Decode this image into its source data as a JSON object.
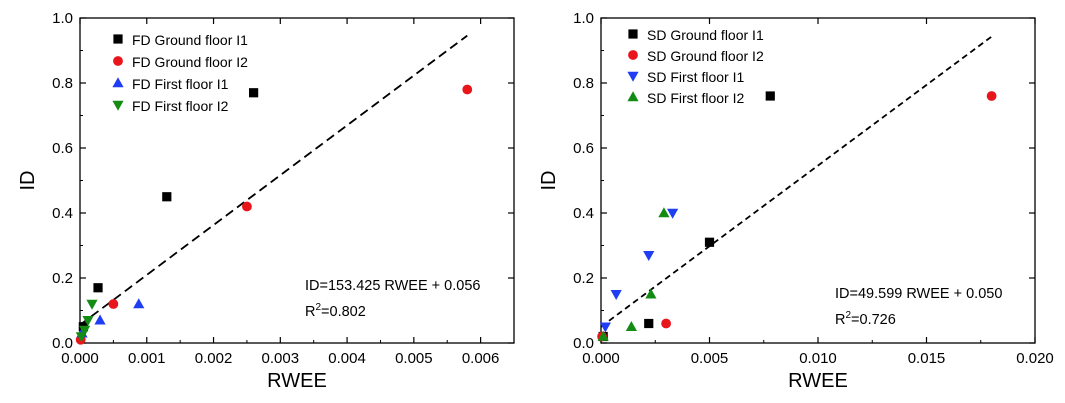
{
  "chart_data": [
    {
      "type": "scatter",
      "xlabel": "RWEE",
      "ylabel": "ID",
      "xlim": [
        0,
        0.0065
      ],
      "ylim": [
        0,
        1.0
      ],
      "xticks": [
        "0.000",
        "0.001",
        "0.002",
        "0.003",
        "0.004",
        "0.005",
        "0.006"
      ],
      "xtick_values": [
        0,
        0.001,
        0.002,
        0.003,
        0.004,
        0.005,
        0.006
      ],
      "yticks": [
        "0.0",
        "0.2",
        "0.4",
        "0.6",
        "0.8",
        "1.0"
      ],
      "ytick_values": [
        0,
        0.2,
        0.4,
        0.6,
        0.8,
        1.0
      ],
      "legend_position": "top-left",
      "series": [
        {
          "name": "FD Ground floor I1",
          "marker": "square",
          "color": "#000000",
          "points": [
            [
              5e-05,
              0.05
            ],
            [
              0.00027,
              0.17
            ],
            [
              0.0013,
              0.45
            ],
            [
              0.0026,
              0.77
            ]
          ]
        },
        {
          "name": "FD Ground floor I2",
          "marker": "circle",
          "color": "#e8161b",
          "points": [
            [
              1e-05,
              0.01
            ],
            [
              0.0005,
              0.12
            ],
            [
              0.0025,
              0.42
            ],
            [
              0.0058,
              0.78
            ]
          ]
        },
        {
          "name": "FD First floor I1",
          "marker": "triangle-up",
          "color": "#1f3df2",
          "points": [
            [
              3e-05,
              0.03
            ],
            [
              0.0003,
              0.07
            ],
            [
              0.00088,
              0.12
            ]
          ]
        },
        {
          "name": "FD First floor I2",
          "marker": "triangle-down",
          "color": "#148c14",
          "points": [
            [
              2e-05,
              0.02
            ],
            [
              7e-05,
              0.04
            ],
            [
              0.00012,
              0.07
            ],
            [
              0.00018,
              0.12
            ]
          ]
        }
      ],
      "fit": {
        "slope": 153.425,
        "intercept": 0.056,
        "x_range": [
          0,
          0.0058
        ]
      },
      "annotation": {
        "equation": "ID=153.425 RWEE + 0.056",
        "r2_base": "R",
        "r2_sup": "2",
        "r2_value": "=0.802"
      }
    },
    {
      "type": "scatter",
      "xlabel": "RWEE",
      "ylabel": "ID",
      "xlim": [
        0,
        0.02
      ],
      "ylim": [
        0,
        1.0
      ],
      "xticks": [
        "0.000",
        "0.005",
        "0.010",
        "0.015",
        "0.020"
      ],
      "xtick_values": [
        0,
        0.005,
        0.01,
        0.015,
        0.02
      ],
      "yticks": [
        "0.0",
        "0.2",
        "0.4",
        "0.6",
        "0.8",
        "1.0"
      ],
      "ytick_values": [
        0,
        0.2,
        0.4,
        0.6,
        0.8,
        1.0
      ],
      "legend_position": "top-left",
      "series": [
        {
          "name": "SD Ground floor I1",
          "marker": "square",
          "color": "#000000",
          "points": [
            [
              0.0001,
              0.02
            ],
            [
              0.0022,
              0.06
            ],
            [
              0.005,
              0.31
            ],
            [
              0.0078,
              0.76
            ]
          ]
        },
        {
          "name": "SD Ground floor I2",
          "marker": "circle",
          "color": "#e8161b",
          "points": [
            [
              5e-05,
              0.02
            ],
            [
              0.003,
              0.06
            ],
            [
              0.018,
              0.76
            ]
          ]
        },
        {
          "name": "SD First floor I1",
          "marker": "triangle-down",
          "color": "#1f3df2",
          "points": [
            [
              0.0002,
              0.05
            ],
            [
              0.0007,
              0.15
            ],
            [
              0.0022,
              0.27
            ],
            [
              0.0033,
              0.4
            ]
          ]
        },
        {
          "name": "SD First floor I2",
          "marker": "triangle-up",
          "color": "#148c14",
          "points": [
            [
              0.0001,
              0.02
            ],
            [
              0.0014,
              0.05
            ],
            [
              0.0023,
              0.15
            ],
            [
              0.0029,
              0.4
            ]
          ]
        }
      ],
      "fit": {
        "slope": 49.599,
        "intercept": 0.05,
        "x_range": [
          0,
          0.018
        ]
      },
      "annotation": {
        "equation": "ID=49.599 RWEE + 0.050",
        "r2_base": "R",
        "r2_sup": "2",
        "r2_value": "=0.726"
      }
    }
  ]
}
